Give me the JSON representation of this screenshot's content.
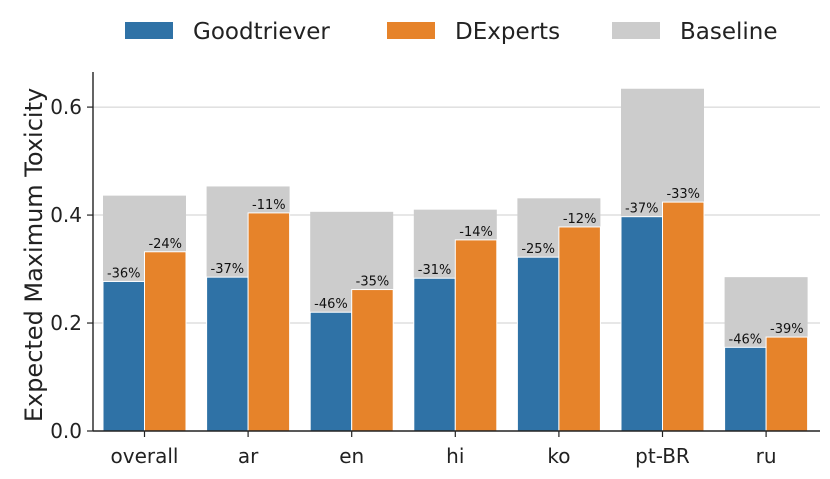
{
  "chart_data": {
    "type": "bar",
    "xlabel": "",
    "ylabel": "Expected Maximum Toxicity",
    "ylim": [
      0,
      0.665
    ],
    "yticks": [
      "0.0",
      "0.2",
      "0.4",
      "0.6"
    ],
    "ytick_values": [
      0,
      0.2,
      0.4,
      0.6
    ],
    "grid": true,
    "legend_position": "top",
    "categories": [
      "overall",
      "ar",
      "en",
      "hi",
      "ko",
      "pt-BR",
      "ru"
    ],
    "baseline": {
      "name": "Baseline",
      "color": "#cccccc",
      "values": [
        0.436,
        0.453,
        0.406,
        0.41,
        0.431,
        0.634,
        0.285
      ]
    },
    "series": [
      {
        "name": "Goodtriever",
        "color": "#2f72a6",
        "values": [
          0.277,
          0.285,
          0.22,
          0.283,
          0.322,
          0.397,
          0.155
        ],
        "labels": [
          "-36%",
          "-37%",
          "-46%",
          "-31%",
          "-25%",
          "-37%",
          "-46%"
        ]
      },
      {
        "name": "DExperts",
        "color": "#e6832a",
        "values": [
          0.332,
          0.404,
          0.262,
          0.354,
          0.378,
          0.424,
          0.174
        ],
        "labels": [
          "-24%",
          "-11%",
          "-35%",
          "-14%",
          "-12%",
          "-33%",
          "-39%"
        ]
      }
    ]
  }
}
